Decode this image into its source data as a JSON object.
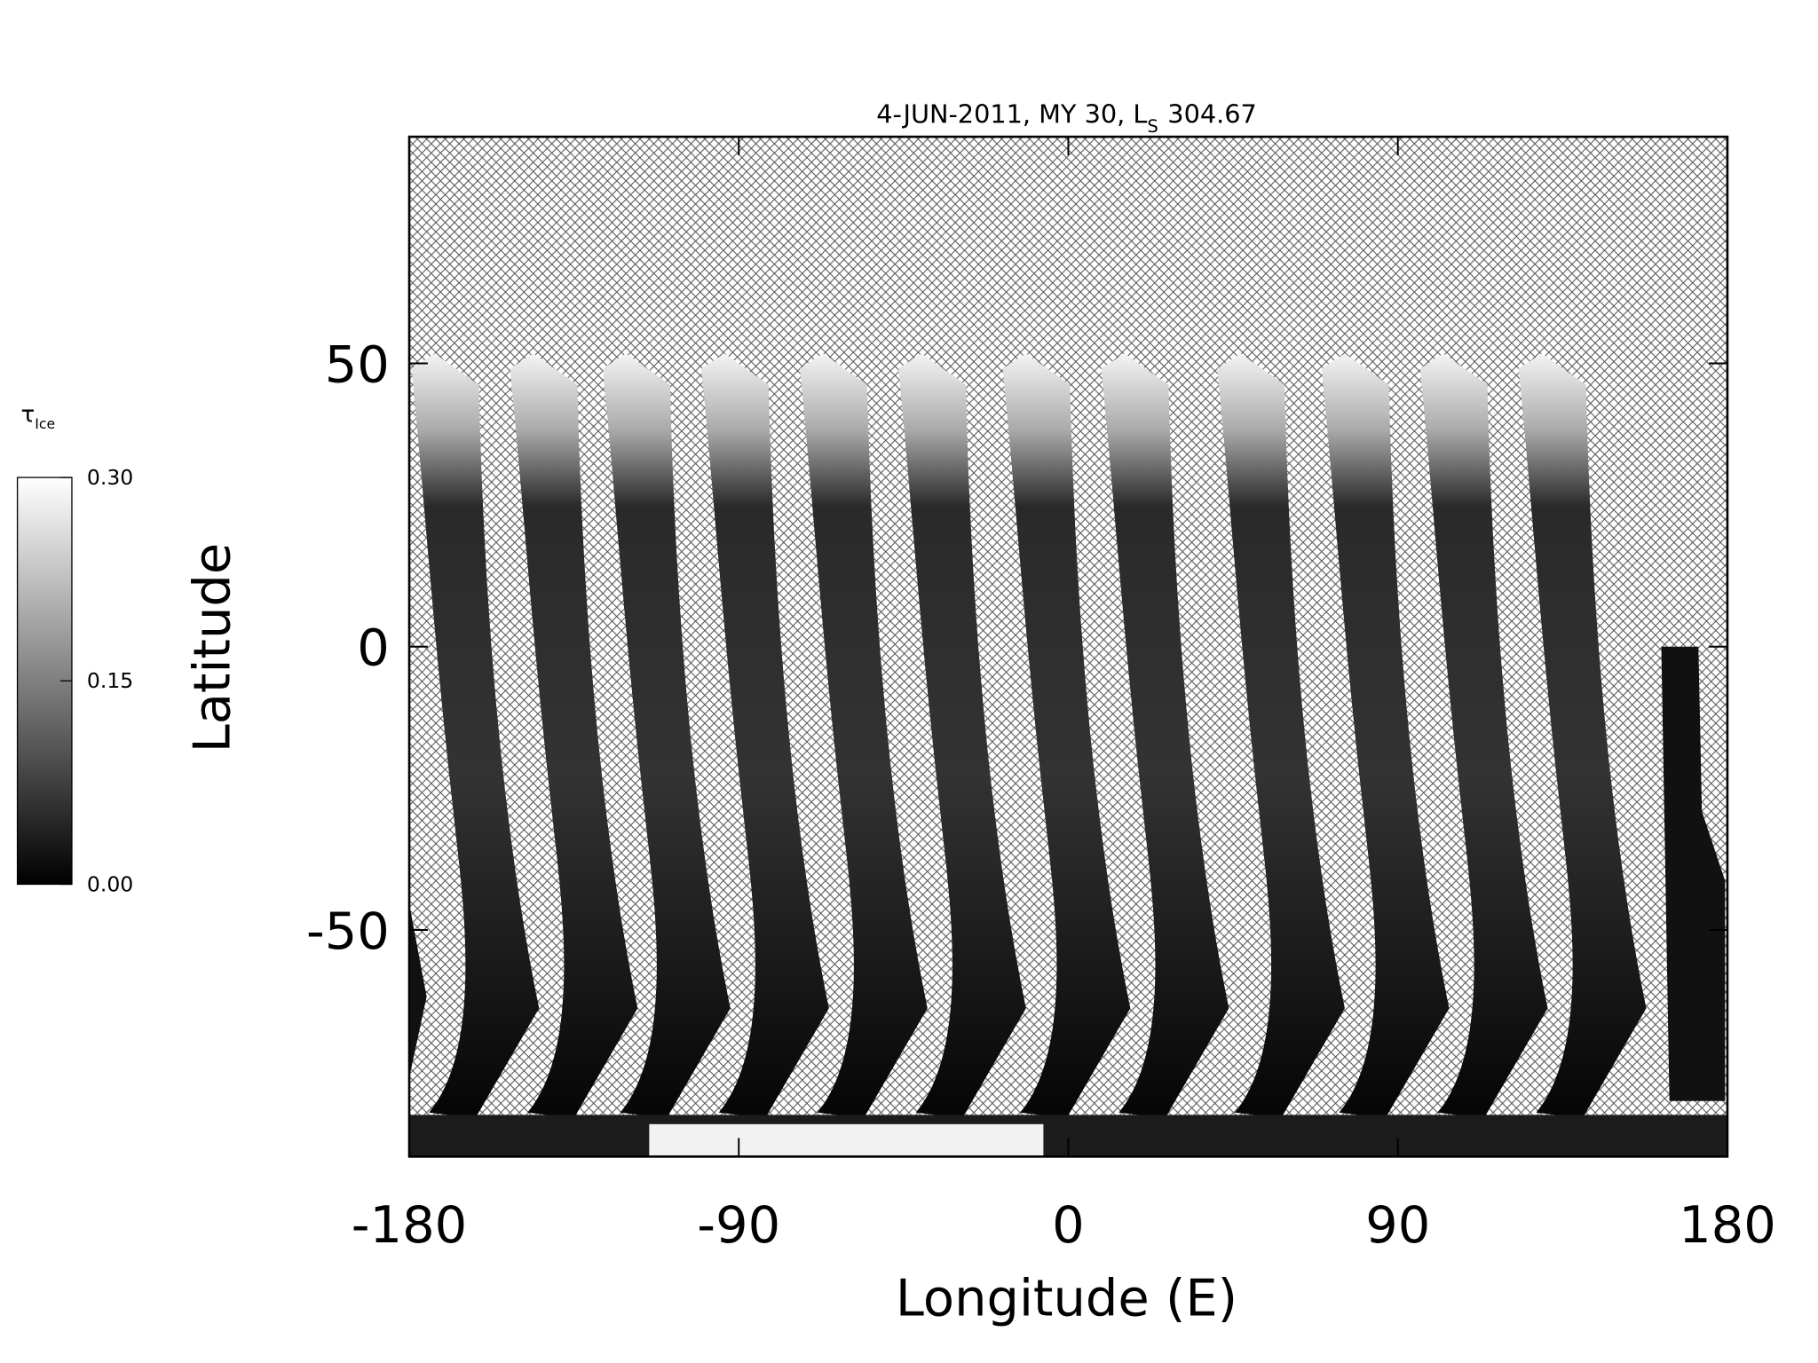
{
  "chart_data": {
    "type": "map",
    "title": "4-JUN-2011, MY 30,  L",
    "title_subscript": "S",
    "title_suffix": "304.67",
    "xlabel": "Longitude (E)",
    "ylabel": "Latitude",
    "xlim": [
      -180,
      180
    ],
    "xticks": [
      -180,
      -90,
      0,
      90,
      180
    ],
    "ylim": [
      -90,
      90
    ],
    "yticks": [
      -50,
      0,
      50
    ],
    "colorbar": {
      "label": "τ",
      "label_subscript": "Ice",
      "lim": [
        0,
        0.3
      ],
      "colors": [
        "#000000",
        "#ffffff"
      ],
      "ticks": [
        {
          "value": 0,
          "label": "0.00"
        },
        {
          "value": 0.15,
          "label": "0.15"
        },
        {
          "value": 0.3,
          "label": "0.30"
        }
      ]
    }
  }
}
